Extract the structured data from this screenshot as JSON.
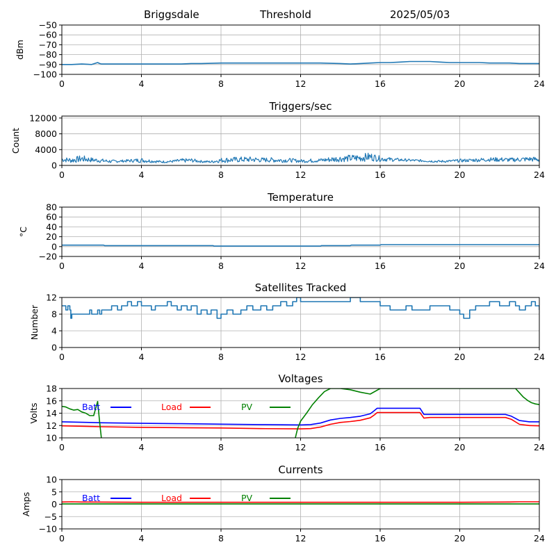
{
  "header": {
    "station": "Briggsdale",
    "mode": "Threshold",
    "date": "2025/05/03"
  },
  "colors": {
    "series": "#1f77b4",
    "batt": "#0000ff",
    "load": "#ff0000",
    "pv": "#008000",
    "grid": "#b0b0b0",
    "axis": "#000000"
  },
  "chart_data": [
    {
      "id": "dbm",
      "type": "line",
      "title": "",
      "xlabel": "",
      "ylabel": "dBm",
      "xlim": [
        0,
        24
      ],
      "ylim": [
        -100,
        -50
      ],
      "xticks": [
        0,
        4,
        8,
        12,
        16,
        20,
        24
      ],
      "yticks": [
        -100,
        -90,
        -80,
        -70,
        -60,
        -50
      ],
      "grid": true,
      "series": [
        {
          "color_key": "series",
          "x": [
            0,
            0.5,
            1,
            1.5,
            1.8,
            1.9,
            2,
            2.5,
            3,
            4,
            5,
            6,
            6.5,
            7,
            8,
            9,
            10,
            11,
            12,
            13,
            14,
            14.5,
            15,
            15.5,
            16,
            16.5,
            17,
            17.5,
            18,
            18.5,
            19,
            19.5,
            20,
            20.5,
            21,
            21.5,
            22,
            22.5,
            23,
            23.5,
            24
          ],
          "y": [
            -90,
            -90,
            -89.5,
            -90,
            -88,
            -89,
            -89.5,
            -89.5,
            -89.5,
            -89.5,
            -89.5,
            -89.5,
            -89,
            -89,
            -88.5,
            -88.5,
            -88.5,
            -88.5,
            -88.5,
            -88.5,
            -89,
            -89.5,
            -89,
            -88.5,
            -88,
            -88,
            -87.5,
            -87,
            -87,
            -87,
            -87.5,
            -88,
            -88,
            -88,
            -88,
            -88.5,
            -88.5,
            -88.5,
            -89,
            -89,
            -89
          ]
        }
      ]
    },
    {
      "id": "triggers",
      "type": "line",
      "title": "Triggers/sec",
      "xlabel": "",
      "ylabel": "Count",
      "xlim": [
        0,
        24
      ],
      "ylim": [
        0,
        12500
      ],
      "xticks": [
        0,
        4,
        8,
        12,
        16,
        20,
        24
      ],
      "yticks": [
        0,
        4000,
        8000,
        12000
      ],
      "grid": true,
      "series": [
        {
          "color_key": "series",
          "noisy": true,
          "x": [
            0,
            0.5,
            1,
            1.5,
            2,
            2.5,
            3,
            3.5,
            4,
            4.5,
            5,
            5.5,
            6,
            6.5,
            7,
            7.5,
            8,
            8.5,
            9,
            9.5,
            10,
            10.5,
            11,
            11.5,
            12,
            12.5,
            13,
            13.5,
            14,
            14.5,
            15,
            15.5,
            16,
            16.5,
            17,
            17.5,
            18,
            18.5,
            19,
            19.5,
            20,
            20.5,
            21,
            21.5,
            22,
            22.5,
            23,
            23.5,
            24
          ],
          "y": [
            1500,
            1300,
            1700,
            1400,
            1200,
            1000,
            1100,
            1200,
            1300,
            1100,
            900,
            1000,
            1200,
            1300,
            1000,
            900,
            1300,
            1400,
            1500,
            1500,
            1400,
            1400,
            1300,
            1300,
            1100,
            1200,
            1300,
            1500,
            1700,
            1800,
            1900,
            2200,
            1700,
            1500,
            1400,
            1300,
            1200,
            1100,
            1000,
            1100,
            1200,
            1300,
            1400,
            1500,
            1500,
            1400,
            1500,
            1600,
            1500
          ],
          "noise": [
            600,
            700,
            900,
            600,
            500,
            400,
            300,
            400,
            600,
            400,
            300,
            300,
            500,
            500,
            300,
            300,
            600,
            700,
            700,
            700,
            600,
            600,
            600,
            500,
            400,
            500,
            500,
            700,
            800,
            900,
            1000,
            1100,
            700,
            500,
            400,
            300,
            300,
            300,
            300,
            300,
            400,
            400,
            500,
            500,
            600,
            500,
            600,
            600,
            700
          ]
        }
      ]
    },
    {
      "id": "temperature",
      "type": "line",
      "title": "Temperature",
      "xlabel": "",
      "ylabel": "°C",
      "xlim": [
        0,
        24
      ],
      "ylim": [
        -20,
        80
      ],
      "xticks": [
        0,
        4,
        8,
        12,
        16,
        20,
        24
      ],
      "yticks": [
        -20,
        0,
        20,
        40,
        60,
        80
      ],
      "grid": true,
      "series": [
        {
          "color_key": "series",
          "x": [
            0,
            2.1,
            2.15,
            7.6,
            7.65,
            13,
            13.05,
            14.5,
            14.55,
            16,
            16.05,
            24
          ],
          "y": [
            3,
            3,
            2,
            2,
            1,
            1,
            2,
            2,
            3,
            3,
            4,
            4
          ]
        }
      ]
    },
    {
      "id": "satellites",
      "type": "line",
      "title": "Satellites Tracked",
      "xlabel": "",
      "ylabel": "Number",
      "xlim": [
        0,
        24
      ],
      "ylim": [
        0,
        12
      ],
      "xticks": [
        0,
        4,
        8,
        12,
        16,
        20,
        24
      ],
      "yticks": [
        0,
        4,
        8,
        12
      ],
      "grid": true,
      "series": [
        {
          "color_key": "series",
          "step": true,
          "x": [
            0,
            0.2,
            0.3,
            0.4,
            0.45,
            0.5,
            1.3,
            1.4,
            1.5,
            1.8,
            1.9,
            2,
            2.3,
            2.5,
            2.8,
            3,
            3.3,
            3.5,
            3.8,
            4,
            4.5,
            4.7,
            5,
            5.3,
            5.5,
            5.8,
            6,
            6.3,
            6.5,
            6.8,
            7,
            7.3,
            7.5,
            7.8,
            8,
            8.3,
            8.6,
            9,
            9.3,
            9.6,
            10,
            10.3,
            10.6,
            11,
            11.3,
            11.6,
            11.8,
            12,
            12.5,
            13,
            13.5,
            14,
            14.5,
            15,
            15.3,
            15.6,
            16,
            16.5,
            17,
            17.3,
            17.6,
            18,
            18.5,
            19,
            19.5,
            19.8,
            20,
            20.2,
            20.5,
            20.8,
            21,
            21.5,
            22,
            22.5,
            22.8,
            23,
            23.3,
            23.6,
            23.8,
            24
          ],
          "y": [
            10,
            9,
            10,
            9,
            7,
            8,
            8,
            9,
            8,
            9,
            8,
            9,
            9,
            10,
            9,
            10,
            11,
            10,
            11,
            10,
            9,
            10,
            10,
            11,
            10,
            9,
            10,
            9,
            10,
            8,
            9,
            8,
            9,
            7,
            8,
            9,
            8,
            9,
            10,
            9,
            10,
            9,
            10,
            11,
            10,
            11,
            12,
            11,
            11,
            11,
            11,
            11,
            12,
            11,
            11,
            11,
            10,
            9,
            9,
            10,
            9,
            9,
            10,
            10,
            9,
            9,
            8,
            7,
            9,
            10,
            10,
            11,
            10,
            11,
            10,
            9,
            10,
            11,
            10,
            9
          ]
        }
      ]
    },
    {
      "id": "voltages",
      "type": "line",
      "title": "Voltages",
      "xlabel": "",
      "ylabel": "Volts",
      "xlim": [
        0,
        24
      ],
      "ylim": [
        10,
        18
      ],
      "xticks": [
        0,
        4,
        8,
        12,
        16,
        20,
        24
      ],
      "yticks": [
        10,
        12,
        14,
        16,
        18
      ],
      "grid": true,
      "legend": [
        {
          "label": "Batt",
          "color_key": "batt"
        },
        {
          "label": "Load",
          "color_key": "load"
        },
        {
          "label": "PV",
          "color_key": "pv"
        }
      ],
      "series": [
        {
          "name": "Batt",
          "color_key": "batt",
          "x": [
            0,
            2,
            4,
            6,
            8,
            10,
            12,
            12.5,
            13,
            13.5,
            14,
            14.5,
            15,
            15.5,
            15.7,
            15.85,
            16,
            16.5,
            17,
            17.5,
            18,
            18.2,
            18.5,
            19,
            20,
            21,
            22,
            22.3,
            22.6,
            23,
            23.5,
            24
          ],
          "y": [
            12.6,
            12.45,
            12.35,
            12.3,
            12.22,
            12.15,
            12.1,
            12.15,
            12.4,
            12.9,
            13.15,
            13.3,
            13.5,
            13.9,
            14.4,
            14.8,
            14.8,
            14.8,
            14.8,
            14.8,
            14.8,
            13.8,
            13.8,
            13.8,
            13.8,
            13.8,
            13.8,
            13.8,
            13.5,
            12.8,
            12.6,
            12.6
          ]
        },
        {
          "name": "Load",
          "color_key": "load",
          "x": [
            0,
            2,
            4,
            6,
            8,
            10,
            12,
            12.5,
            13,
            13.5,
            14,
            14.5,
            15,
            15.5,
            15.7,
            15.85,
            16,
            16.5,
            17,
            17.5,
            18,
            18.2,
            18.5,
            19,
            20,
            21,
            22,
            22.3,
            22.6,
            23,
            23.5,
            24
          ],
          "y": [
            11.95,
            11.8,
            11.7,
            11.65,
            11.6,
            11.5,
            11.45,
            11.5,
            11.75,
            12.2,
            12.5,
            12.65,
            12.85,
            13.25,
            13.7,
            14.1,
            14.1,
            14.1,
            14.1,
            14.1,
            14.1,
            13.2,
            13.3,
            13.3,
            13.3,
            13.3,
            13.3,
            13.3,
            13.0,
            12.2,
            12.0,
            11.95
          ]
        },
        {
          "name": "PV",
          "color_key": "pv",
          "x": [
            0,
            0.2,
            0.4,
            0.6,
            0.8,
            1.0,
            1.2,
            1.4,
            1.6,
            1.7,
            1.8,
            1.9,
            2.0,
            11.7,
            11.85,
            12,
            12.3,
            12.6,
            12.9,
            13.2,
            13.5,
            14,
            14.5,
            15,
            15.5,
            16,
            22.8,
            23,
            23.2,
            23.4,
            23.6,
            23.8,
            24
          ],
          "y": [
            15.1,
            15,
            14.7,
            14.5,
            14.6,
            14.2,
            14.0,
            13.6,
            13.6,
            14.8,
            15.9,
            12.5,
            9.5,
            9.5,
            11.5,
            12.7,
            14.0,
            15.4,
            16.5,
            17.5,
            18.0,
            18.0,
            17.8,
            17.4,
            17.1,
            18.0,
            18.0,
            17.3,
            16.6,
            16.1,
            15.7,
            15.5,
            15.4
          ]
        }
      ]
    },
    {
      "id": "currents",
      "type": "line",
      "title": "Currents",
      "xlabel": "",
      "ylabel": "Amps",
      "xlim": [
        0,
        24
      ],
      "ylim": [
        -10,
        10
      ],
      "xticks": [
        0,
        4,
        8,
        12,
        16,
        20,
        24
      ],
      "yticks": [
        -10,
        -5,
        0,
        5,
        10
      ],
      "grid": true,
      "legend": [
        {
          "label": "Batt",
          "color_key": "batt"
        },
        {
          "label": "Load",
          "color_key": "load"
        },
        {
          "label": "PV",
          "color_key": "pv"
        }
      ],
      "series": [
        {
          "name": "Load",
          "color_key": "load",
          "x": [
            0,
            0.5,
            1,
            4,
            8,
            12,
            16,
            20,
            22.5,
            23,
            24
          ],
          "y": [
            0.9,
            1.0,
            0.9,
            0.8,
            0.8,
            0.8,
            0.8,
            0.8,
            0.9,
            1.0,
            1.0
          ]
        },
        {
          "name": "PV",
          "color_key": "pv",
          "x": [
            0,
            24
          ],
          "y": [
            0.1,
            0.1
          ]
        }
      ]
    }
  ]
}
